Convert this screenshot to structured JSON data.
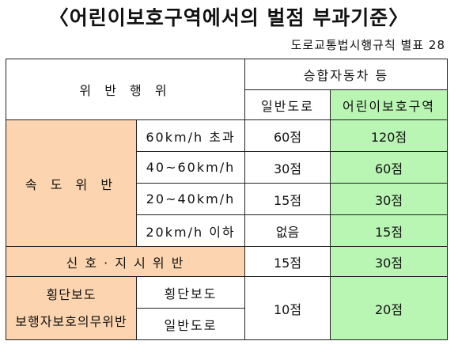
{
  "title": "〈어린이보호구역에서의 벌점 부과기준〉",
  "subtitle": "도로교통법시행규칙 별표 28",
  "table": {
    "header": {
      "violation": "위 반 행 위",
      "vehicle_group": "승합자동차 등",
      "normal_road": "일반도로",
      "school_zone": "어린이보호구역"
    },
    "speeding": {
      "label": "속 도 위 반",
      "rows": [
        {
          "condition": "60km/h 초과",
          "normal": "60점",
          "school": "120점"
        },
        {
          "condition": "40~60km/h",
          "normal": "30점",
          "school": "60점"
        },
        {
          "condition": "20~40km/h",
          "normal": "15점",
          "school": "30점"
        },
        {
          "condition": "20km/h 이하",
          "normal": "없음",
          "school": "15점"
        }
      ]
    },
    "signal": {
      "label": "신 호 · 지 시 위 반",
      "normal": "15점",
      "school": "30점"
    },
    "crosswalk": {
      "label_line1": "횡단보도",
      "label_line2": "보행자보호의무위반",
      "sub1": "횡단보도",
      "sub2": "일반도로",
      "normal": "10점",
      "school": "20점"
    }
  },
  "colors": {
    "peach": "#fcd5b0",
    "green": "#b9f5b3"
  }
}
